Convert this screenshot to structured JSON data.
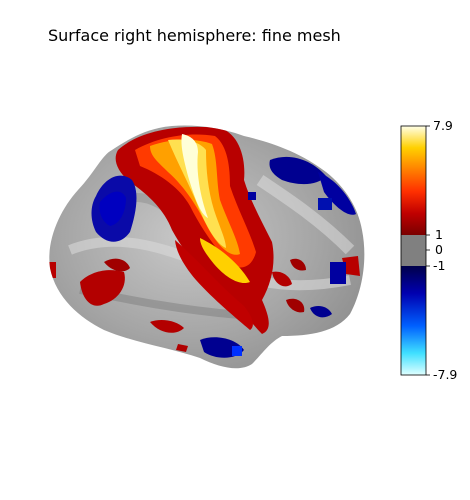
{
  "figure": {
    "title": "Surface right hemisphere: fine mesh"
  },
  "colorbar": {
    "max_label": "7.9",
    "upper_threshold_label": "1",
    "zero_label": "0",
    "lower_threshold_label": "-1",
    "min_label": "-7.9",
    "positive_colors": [
      "#7a0000",
      "#b30000",
      "#e62000",
      "#ff6000",
      "#ffa000",
      "#ffe040",
      "#ffffe0"
    ],
    "negative_colors": [
      "#00004a",
      "#0000a0",
      "#0040ff",
      "#00b0ff",
      "#a0ffff"
    ],
    "threshold_color": "#808080"
  },
  "surface": {
    "background_color": "#a9a9a9",
    "view": "lateral"
  }
}
